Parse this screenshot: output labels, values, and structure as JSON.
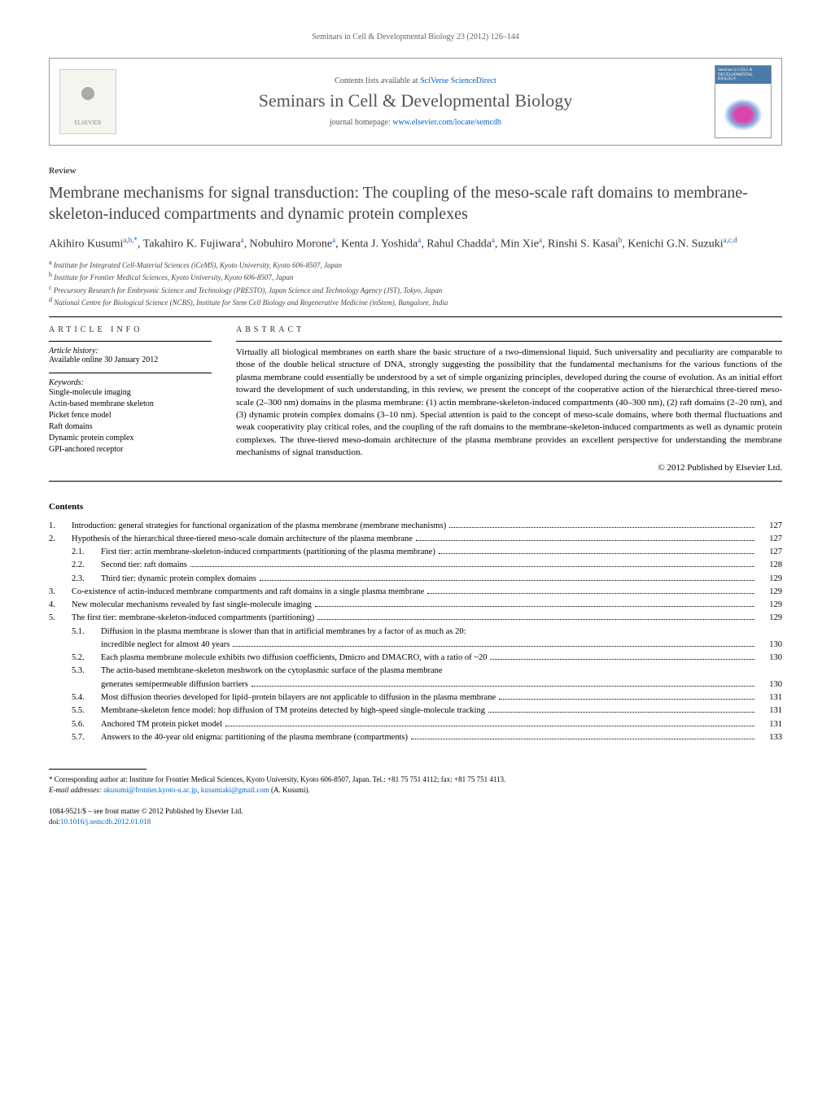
{
  "running_header": "Seminars in Cell & Developmental Biology 23 (2012) 126–144",
  "banner": {
    "contents_prefix": "Contents lists available at ",
    "contents_link": "SciVerse ScienceDirect",
    "journal_name": "Seminars in Cell & Developmental Biology",
    "homepage_prefix": "journal homepage: ",
    "homepage_url": "www.elsevier.com/locate/semcdb",
    "publisher": "ELSEVIER",
    "cover_label": "Seminars in CELL & DEVELOPMENTAL BIOLOGY"
  },
  "article": {
    "type": "Review",
    "title": "Membrane mechanisms for signal transduction: The coupling of the meso-scale raft domains to membrane-skeleton-induced compartments and dynamic protein complexes",
    "authors_html": "Akihiro Kusumi<sup>a,b,*</sup>, Takahiro K. Fujiwara<sup>a</sup>, Nobuhiro Morone<sup>a</sup>, Kenta J. Yoshida<sup>a</sup>, Rahul Chadda<sup>a</sup>, Min Xie<sup>a</sup>, Rinshi S. Kasai<sup>b</sup>, Kenichi G.N. Suzuki<sup>a,c,d</sup>",
    "affiliations": [
      {
        "sup": "a",
        "text": "Institute for Integrated Cell-Material Sciences (iCeMS), Kyoto University, Kyoto 606-8507, Japan"
      },
      {
        "sup": "b",
        "text": "Institute for Frontier Medical Sciences, Kyoto University, Kyoto 606-8507, Japan"
      },
      {
        "sup": "c",
        "text": "Precursory Research for Embryonic Science and Technology (PRESTO), Japan Science and Technology Agency (JST), Tokyo, Japan"
      },
      {
        "sup": "d",
        "text": "National Centre for Biological Science (NCBS), Institute for Stem Cell Biology and Regenerative Medicine (inStem), Bangalore, India"
      }
    ]
  },
  "info": {
    "heading": "ARTICLE INFO",
    "history_label": "Article history:",
    "history_text": "Available online 30 January 2012",
    "keywords_label": "Keywords:",
    "keywords": [
      "Single-molecule imaging",
      "Actin-based membrane skeleton",
      "Picket fence model",
      "Raft domains",
      "Dynamic protein complex",
      "GPI-anchored receptor"
    ]
  },
  "abstract": {
    "heading": "ABSTRACT",
    "text": "Virtually all biological membranes on earth share the basic structure of a two-dimensional liquid. Such universality and peculiarity are comparable to those of the double helical structure of DNA, strongly suggesting the possibility that the fundamental mechanisms for the various functions of the plasma membrane could essentially be understood by a set of simple organizing principles, developed during the course of evolution. As an initial effort toward the development of such understanding, in this review, we present the concept of the cooperative action of the hierarchical three-tiered meso-scale (2–300 nm) domains in the plasma membrane: (1) actin membrane-skeleton-induced compartments (40–300 nm), (2) raft domains (2–20 nm), and (3) dynamic protein complex domains (3–10 nm). Special attention is paid to the concept of meso-scale domains, where both thermal fluctuations and weak cooperativity play critical roles, and the coupling of the raft domains to the membrane-skeleton-induced compartments as well as dynamic protein complexes. The three-tiered meso-domain architecture of the plasma membrane provides an excellent perspective for understanding the membrane mechanisms of signal transduction.",
    "copyright": "© 2012 Published by Elsevier Ltd."
  },
  "contents": {
    "heading": "Contents",
    "items": [
      {
        "num": "1.",
        "sub": "",
        "title": "Introduction: general strategies for functional organization of the plasma membrane (membrane mechanisms)",
        "page": "127"
      },
      {
        "num": "2.",
        "sub": "",
        "title": "Hypothesis of the hierarchical three-tiered meso-scale domain architecture of the plasma membrane",
        "page": "127"
      },
      {
        "num": "",
        "sub": "2.1.",
        "title": "First tier: actin membrane-skeleton-induced compartments (partitioning of the plasma membrane)",
        "page": "127"
      },
      {
        "num": "",
        "sub": "2.2.",
        "title": "Second tier: raft domains",
        "page": "128"
      },
      {
        "num": "",
        "sub": "2.3.",
        "title": "Third tier: dynamic protein complex domains",
        "page": "129"
      },
      {
        "num": "3.",
        "sub": "",
        "title": "Co-existence of actin-induced membrane compartments and raft domains in a single plasma membrane",
        "page": "129"
      },
      {
        "num": "4.",
        "sub": "",
        "title": "New molecular mechanisms revealed by fast single-molecule imaging",
        "page": "129"
      },
      {
        "num": "5.",
        "sub": "",
        "title": "The first tier: membrane-skeleton-induced compartments (partitioning)",
        "page": "129"
      },
      {
        "num": "",
        "sub": "5.1.",
        "title": "Diffusion in the plasma membrane is slower than that in artificial membranes by a factor of as much as 20:",
        "cont": "incredible neglect for almost 40 years",
        "page": "130"
      },
      {
        "num": "",
        "sub": "5.2.",
        "title": "Each plasma membrane molecule exhibits two diffusion coefficients, Dmicro and DMACRO, with a ratio of ~20",
        "page": "130"
      },
      {
        "num": "",
        "sub": "5.3.",
        "title": "The actin-based membrane-skeleton meshwork on the cytoplasmic surface of the plasma membrane",
        "cont": "generates semipermeable diffusion barriers",
        "page": "130"
      },
      {
        "num": "",
        "sub": "5.4.",
        "title": "Most diffusion theories developed for lipid–protein bilayers are not applicable to diffusion in the plasma membrane",
        "page": "131"
      },
      {
        "num": "",
        "sub": "5.5.",
        "title": "Membrane-skeleton fence model: hop diffusion of TM proteins detected by high-speed single-molecule tracking",
        "page": "131"
      },
      {
        "num": "",
        "sub": "5.6.",
        "title": "Anchored TM protein picket model",
        "page": "131"
      },
      {
        "num": "",
        "sub": "5.7.",
        "title": "Answers to the 40-year old enigma: partitioning of the plasma membrane (compartments)",
        "page": "133"
      }
    ]
  },
  "footnote": {
    "corr": "* Corresponding author at: Institute for Frontier Medical Sciences, Kyoto University, Kyoto 606-8507, Japan. Tel.: +81 75 751 4112; fax: +81 75 751 4113.",
    "email_label": "E-mail addresses: ",
    "email1": "akusumi@frontier.kyoto-u.ac.jp",
    "email2": "kusumiaki@gmail.com",
    "email_suffix": " (A. Kusumi)."
  },
  "footer": {
    "issn": "1084-9521/$ – see front matter © 2012 Published by Elsevier Ltd.",
    "doi_prefix": "doi:",
    "doi": "10.1016/j.semcdb.2012.01.018"
  }
}
